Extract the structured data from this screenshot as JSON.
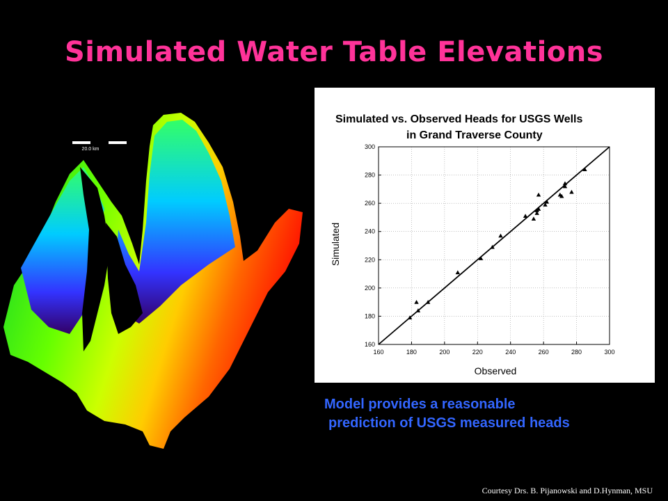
{
  "slide": {
    "title": "Simulated Water Table Elevations",
    "caption_line1": "Model provides a reasonable",
    "caption_line2": "prediction of USGS measured heads",
    "credit": "Courtesy Drs. B. Pijanowski  and D.Hynman, MSU",
    "map_scale_label": "20.0 km",
    "colors": {
      "title": "#ff3399",
      "caption": "#3366ff",
      "background": "#000000"
    }
  },
  "chart_data": {
    "type": "scatter",
    "title": "Simulated vs. Observed Heads for USGS  Wells",
    "subtitle": "in Grand Traverse County",
    "xlabel": "Observed",
    "ylabel": "Simulated",
    "xlim": [
      160,
      300
    ],
    "ylim": [
      160,
      300
    ],
    "xticks": [
      "160",
      "180",
      "200",
      "220",
      "240",
      "260",
      "280",
      "300"
    ],
    "yticks": [
      "160",
      "180",
      "200",
      "220",
      "240",
      "260",
      "280",
      "300"
    ],
    "grid": true,
    "marker": "triangle",
    "reference_line": [
      [
        160,
        160
      ],
      [
        300,
        300
      ]
    ],
    "x": [
      179,
      183,
      184,
      190,
      208,
      222,
      229,
      234,
      249,
      254,
      256,
      256,
      257,
      257,
      261,
      262,
      270,
      271,
      273,
      273,
      277,
      285
    ],
    "y": [
      179,
      190,
      184,
      190,
      211,
      221,
      229,
      237,
      251,
      249,
      255,
      253,
      266,
      256,
      259,
      261,
      266,
      265,
      274,
      272,
      268,
      284
    ]
  }
}
